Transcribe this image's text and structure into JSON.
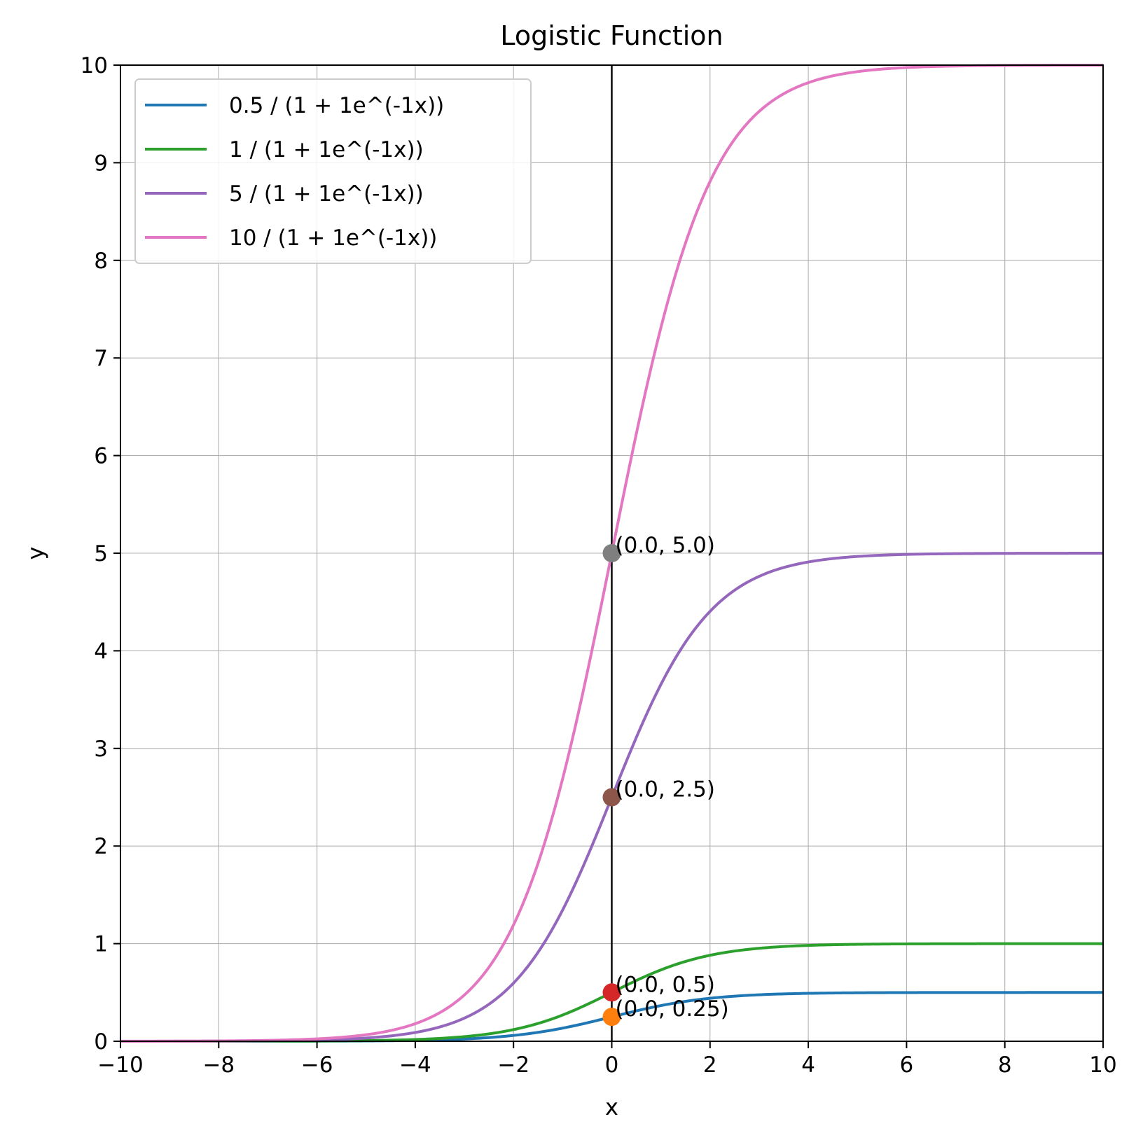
{
  "chart_data": {
    "type": "line",
    "title": "Logistic Function",
    "xlabel": "x",
    "ylabel": "y",
    "xlim": [
      -10,
      10
    ],
    "ylim": [
      0,
      10
    ],
    "grid": true,
    "legend_position": "top-left",
    "x_ticks": [
      -10,
      -8,
      -6,
      -4,
      -2,
      0,
      2,
      4,
      6,
      8,
      10
    ],
    "x_tick_labels": [
      "−10",
      "−8",
      "−6",
      "−4",
      "−2",
      "0",
      "2",
      "4",
      "6",
      "8",
      "10"
    ],
    "y_ticks": [
      0,
      1,
      2,
      3,
      4,
      5,
      6,
      7,
      8,
      9,
      10
    ],
    "y_tick_labels": [
      "0",
      "1",
      "2",
      "3",
      "4",
      "5",
      "6",
      "7",
      "8",
      "9",
      "10"
    ],
    "vertical_line": {
      "x": 0,
      "color": "#000000"
    },
    "series": [
      {
        "name": "0.5 / (1 + 1e^(-1x))",
        "color": "#1f77b4",
        "L": 0.5,
        "k": 1,
        "a": 1
      },
      {
        "name": "1 / (1 + 1e^(-1x))",
        "color": "#2ca02c",
        "L": 1,
        "k": 1,
        "a": 1
      },
      {
        "name": "5 / (1 + 1e^(-1x))",
        "color": "#9467bd",
        "L": 5,
        "k": 1,
        "a": 1
      },
      {
        "name": "10 / (1 + 1e^(-1x))",
        "color": "#e377c2",
        "L": 10,
        "k": 1,
        "a": 1
      }
    ],
    "points": [
      {
        "x": 0.0,
        "y": 0.25,
        "color": "#ff7f0e",
        "label": "(0.0, 0.25)"
      },
      {
        "x": 0.0,
        "y": 0.5,
        "color": "#d62728",
        "label": "(0.0, 0.5)"
      },
      {
        "x": 0.0,
        "y": 2.5,
        "color": "#8c564b",
        "label": "(0.0, 2.5)"
      },
      {
        "x": 0.0,
        "y": 5.0,
        "color": "#7f7f7f",
        "label": "(0.0, 5.0)"
      }
    ]
  }
}
